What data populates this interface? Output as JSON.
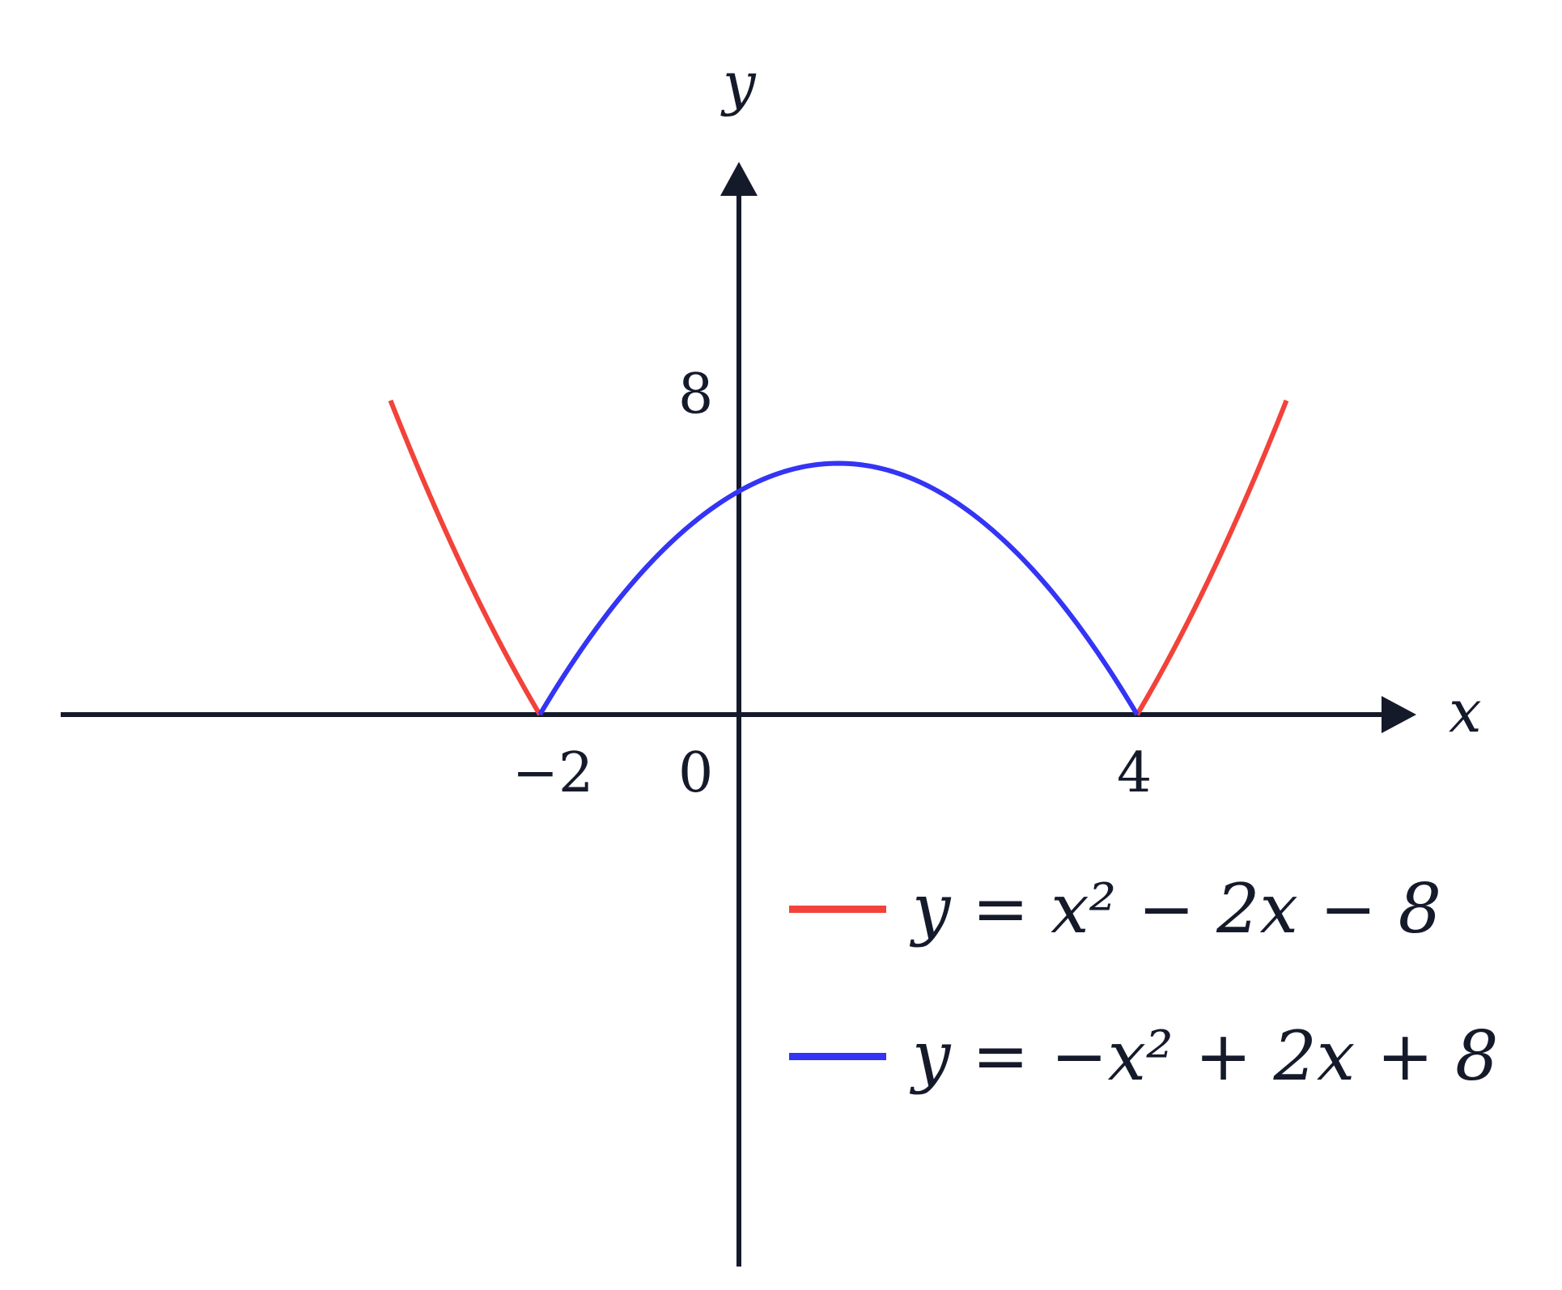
{
  "colors": {
    "axis": "#151a2b",
    "red": "#f2423a",
    "blue": "#3434f5"
  },
  "axes": {
    "x_label": "x",
    "y_label": "y"
  },
  "ticks": {
    "neg2": "−2",
    "zero": "0",
    "four": "4",
    "eight": "8"
  },
  "legend": [
    {
      "label": "y = x² − 2x − 8"
    },
    {
      "label": "y = −x² + 2x + 8"
    }
  ],
  "chart_data": {
    "type": "line",
    "xlabel": "x",
    "ylabel": "y",
    "xlim": [
      -9.4,
      8.5
    ],
    "ylim": [
      -17.5,
      16
    ],
    "x_ticks": [
      -2,
      0,
      4
    ],
    "y_ticks": [
      8
    ],
    "grid": false,
    "legend_position": "bottom-right",
    "series": [
      {
        "name": "y = x² − 2x − 8",
        "color": "#f2423a",
        "segments": [
          {
            "x_start": -3.5,
            "x_end": -2
          },
          {
            "x_start": 4,
            "x_end": 5.5
          }
        ],
        "function": "abs(x^2 - 2x - 8)"
      },
      {
        "name": "y = −x² + 2x + 8",
        "color": "#3434f5",
        "segments": [
          {
            "x_start": -2,
            "x_end": 4
          }
        ],
        "function": "-x^2 + 2x + 8"
      }
    ]
  }
}
